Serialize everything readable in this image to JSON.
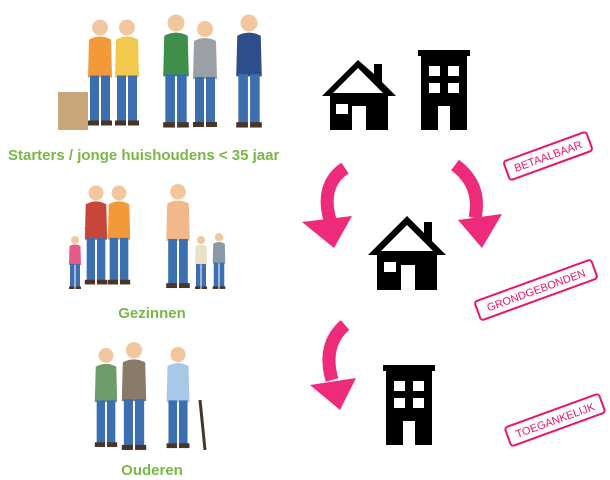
{
  "groups": [
    {
      "label": "Starters / jonge huishoudens < 35 jaar"
    },
    {
      "label": "Gezinnen"
    },
    {
      "label": "Ouderen"
    }
  ],
  "stamps": [
    "BETAALBAAR",
    "GRONDGEBONDEN",
    "TOEGANKELIJK"
  ]
}
